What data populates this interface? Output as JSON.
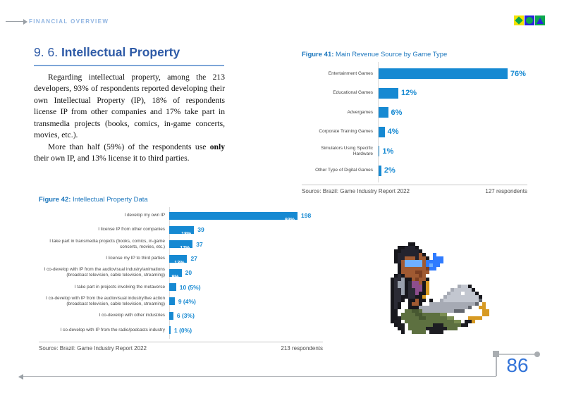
{
  "header": {
    "section_label": "FINANCIAL OVERVIEW"
  },
  "logo_icons": [
    "diamond",
    "circle",
    "triangle"
  ],
  "heading": {
    "number": "9. 6.",
    "title": "Intellectual Property"
  },
  "paragraphs": {
    "p1": "Regarding intellectual property, among the 213 developers, 93% of respondents reported developing their own Intellectual Property (IP), 18% of respondents license IP from other companies and 17% take part in transmedia projects (books, comics, in-game concerts, movies, etc.).",
    "p2_pre": "More than half (59%) of the respondents use ",
    "p2_bold": "only",
    "p2_post": " their own IP, and 13% license it to third parties."
  },
  "chart_data": [
    {
      "type": "bar",
      "orientation": "horizontal",
      "title_prefix": "Figure 41:",
      "title": "Main Revenue Source by Game Type",
      "categories": [
        "Entertainment Games",
        "Educational Games",
        "Advergames",
        "Corporate Training Games",
        "Simulators Using Specific Hardware",
        "Other Type of Digital Games"
      ],
      "values": [
        76,
        12,
        6,
        4,
        1,
        2
      ],
      "value_labels": [
        "76%",
        "12%",
        "6%",
        "4%",
        "1%",
        "2%"
      ],
      "xlim": [
        0,
        100
      ],
      "bar_color": "#1689d2",
      "grid": false,
      "source": "Source: Brazil: Game Industry Report 2022",
      "respondents": "127 respondents"
    },
    {
      "type": "bar",
      "orientation": "horizontal",
      "title_prefix": "Figure 42:",
      "title": "Intellectual Property Data",
      "categories": [
        "I develop my own IP",
        "I license IP from other companies",
        "I take part in transmedia projects (books, comics, in-game concerts, movies, etc.)",
        "I license my IP to third parties",
        "I co-develop with IP from the audiovisual industry/animations (broadcast television, cable television, streaming)",
        "I take part in projects involving the metaverse",
        "I co-develop with IP from the audiovisual industry/live action (broadcast television, cable television, streaming)",
        "I co-develop with other industries",
        "I co-develop with IP from the radio/podcasts industry"
      ],
      "values": [
        93,
        18,
        17,
        13,
        9,
        5,
        4,
        3,
        0.5
      ],
      "counts": [
        198,
        39,
        37,
        27,
        20,
        10,
        9,
        6,
        1
      ],
      "inside_labels": [
        "93%",
        "18%",
        "17%",
        "13%",
        "9%",
        "",
        "",
        "",
        ""
      ],
      "outside_labels": [
        "198",
        "39",
        "37",
        "27",
        "20",
        "10 (5%)",
        "9 (4%)",
        "6 (3%)",
        "1 (0%)"
      ],
      "xlim": [
        0,
        100
      ],
      "bar_color": "#1689d2",
      "grid": false,
      "source": "Source: Brazil: Game Industry Report 2022",
      "respondents": "213 respondents"
    }
  ],
  "footer": {
    "page_number": "86"
  }
}
